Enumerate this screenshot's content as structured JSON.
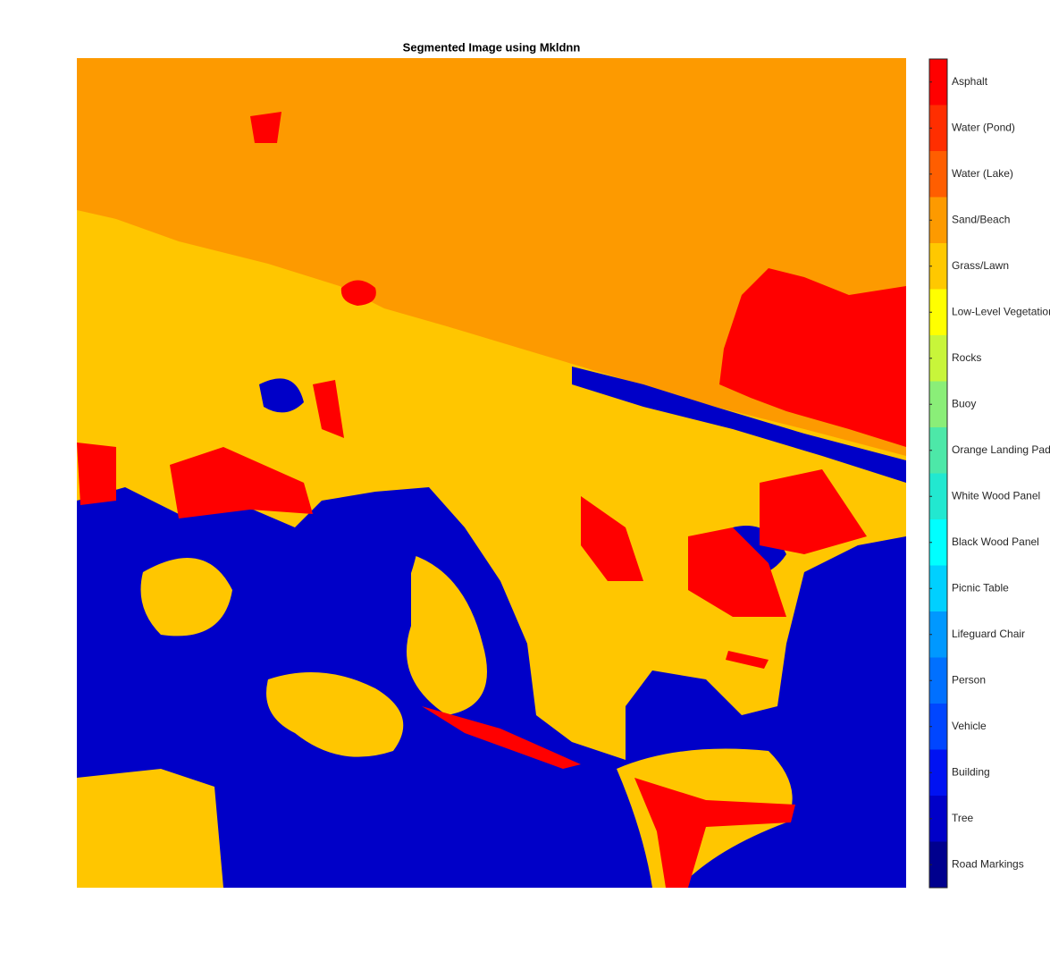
{
  "chart_data": {
    "type": "segmentation",
    "title": "Segmented Image using Mkldnn",
    "categories": [
      "Asphalt",
      "Water (Pond)",
      "Water (Lake)",
      "Sand/Beach",
      "Grass/Lawn",
      "Low-Level Vegetation",
      "Rocks",
      "Buoy",
      "Orange Landing Pad",
      "White Wood Panel",
      "Black Wood Panel",
      "Picnic Table",
      "Lifeguard Chair",
      "Person",
      "Vehicle",
      "Building",
      "Tree",
      "Road Markings"
    ],
    "colors": [
      "#ff0000",
      "#ff2e00",
      "#ff5e00",
      "#fd9a00",
      "#ffc800",
      "#ffff00",
      "#c8f53a",
      "#8aee78",
      "#4de8a8",
      "#22e8d0",
      "#00ffff",
      "#00d0ff",
      "#0098ff",
      "#0070ff",
      "#0046ff",
      "#0012f2",
      "#0000c8",
      "#00008e"
    ]
  }
}
